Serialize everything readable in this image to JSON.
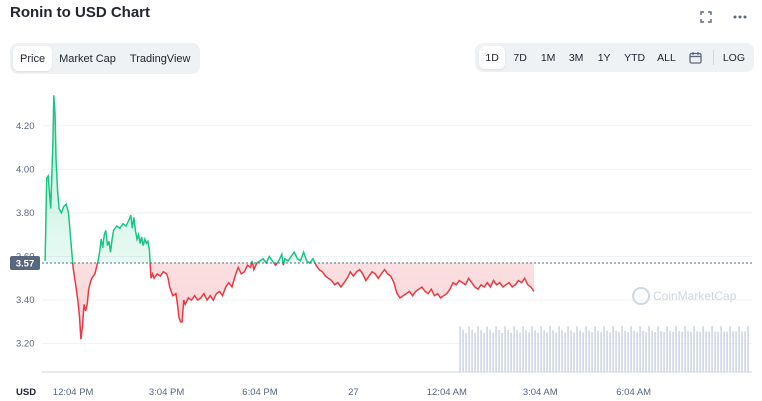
{
  "title": "Ronin to USD Chart",
  "icons": {
    "fullscreen": "expand-icon",
    "more": "more-dots-icon",
    "calendar": "calendar-icon"
  },
  "left_tabs": [
    {
      "label": "Price",
      "active": true
    },
    {
      "label": "Market Cap",
      "active": false
    },
    {
      "label": "TradingView",
      "active": false
    }
  ],
  "right_tabs": [
    {
      "label": "1D",
      "active": true
    },
    {
      "label": "7D",
      "active": false
    },
    {
      "label": "1M",
      "active": false
    },
    {
      "label": "3M",
      "active": false
    },
    {
      "label": "1Y",
      "active": false
    },
    {
      "label": "YTD",
      "active": false
    },
    {
      "label": "ALL",
      "active": false
    }
  ],
  "log_label": "LOG",
  "current_price": "3.57",
  "watermark": "CoinMarketCap",
  "colors": {
    "up": "#16c784",
    "down": "#ea3943",
    "badge": "#58667e"
  },
  "chart_data": {
    "type": "line",
    "currency_label": "USD",
    "baseline": 3.57,
    "ylim": [
      3.07,
      4.41
    ],
    "yticks": [
      "3.20",
      "3.40",
      "3.60",
      "3.80",
      "4.00",
      "4.20"
    ],
    "x_tick_labels": [
      "12:04 PM",
      "3:04 PM",
      "6:04 PM",
      "27",
      "12:04 AM",
      "3:04 AM",
      "6:04 AM"
    ],
    "x_tick_positions_hours": [
      1,
      4,
      7,
      10,
      13,
      16,
      19
    ],
    "xlim_hours": [
      0,
      22.8
    ],
    "series": [
      {
        "points": [
          [
            0.1,
            3.58
          ],
          [
            0.15,
            3.96
          ],
          [
            0.2,
            3.97
          ],
          [
            0.28,
            3.82
          ],
          [
            0.35,
            4.12
          ],
          [
            0.38,
            4.34
          ],
          [
            0.42,
            4.25
          ],
          [
            0.45,
            4.05
          ],
          [
            0.5,
            3.9
          ],
          [
            0.55,
            3.82
          ],
          [
            0.62,
            3.8
          ],
          [
            0.7,
            3.83
          ],
          [
            0.78,
            3.84
          ],
          [
            0.85,
            3.8
          ],
          [
            0.9,
            3.72
          ],
          [
            0.95,
            3.63
          ],
          [
            1.0,
            3.55
          ],
          [
            1.05,
            3.5
          ],
          [
            1.1,
            3.45
          ],
          [
            1.15,
            3.4
          ],
          [
            1.2,
            3.33
          ],
          [
            1.25,
            3.22
          ],
          [
            1.3,
            3.28
          ],
          [
            1.35,
            3.38
          ],
          [
            1.4,
            3.35
          ],
          [
            1.45,
            3.38
          ],
          [
            1.5,
            3.45
          ],
          [
            1.55,
            3.48
          ],
          [
            1.6,
            3.5
          ],
          [
            1.7,
            3.52
          ],
          [
            1.8,
            3.58
          ],
          [
            1.85,
            3.62
          ],
          [
            1.9,
            3.68
          ],
          [
            1.95,
            3.64
          ],
          [
            2.0,
            3.7
          ],
          [
            2.05,
            3.72
          ],
          [
            2.1,
            3.65
          ],
          [
            2.15,
            3.67
          ],
          [
            2.2,
            3.62
          ],
          [
            2.25,
            3.68
          ],
          [
            2.3,
            3.72
          ],
          [
            2.4,
            3.74
          ],
          [
            2.5,
            3.73
          ],
          [
            2.6,
            3.75
          ],
          [
            2.7,
            3.74
          ],
          [
            2.8,
            3.77
          ],
          [
            2.85,
            3.79
          ],
          [
            2.9,
            3.73
          ],
          [
            2.95,
            3.78
          ],
          [
            3.0,
            3.72
          ],
          [
            3.05,
            3.68
          ],
          [
            3.1,
            3.7
          ],
          [
            3.15,
            3.66
          ],
          [
            3.2,
            3.69
          ],
          [
            3.25,
            3.65
          ],
          [
            3.3,
            3.68
          ],
          [
            3.35,
            3.66
          ],
          [
            3.4,
            3.67
          ],
          [
            3.45,
            3.63
          ],
          [
            3.5,
            3.5
          ],
          [
            3.55,
            3.52
          ],
          [
            3.6,
            3.5
          ],
          [
            3.7,
            3.52
          ],
          [
            3.8,
            3.51
          ],
          [
            3.9,
            3.53
          ],
          [
            4.0,
            3.52
          ],
          [
            4.05,
            3.5
          ],
          [
            4.1,
            3.46
          ],
          [
            4.15,
            3.44
          ],
          [
            4.2,
            3.42
          ],
          [
            4.3,
            3.43
          ],
          [
            4.35,
            3.38
          ],
          [
            4.4,
            3.32
          ],
          [
            4.45,
            3.3
          ],
          [
            4.5,
            3.3
          ],
          [
            4.55,
            3.4
          ],
          [
            4.6,
            3.38
          ],
          [
            4.7,
            3.41
          ],
          [
            4.8,
            3.4
          ],
          [
            4.9,
            3.42
          ],
          [
            5.0,
            3.4
          ],
          [
            5.1,
            3.41
          ],
          [
            5.2,
            3.43
          ],
          [
            5.3,
            3.4
          ],
          [
            5.4,
            3.42
          ],
          [
            5.5,
            3.4
          ],
          [
            5.6,
            3.43
          ],
          [
            5.7,
            3.44
          ],
          [
            5.8,
            3.42
          ],
          [
            5.9,
            3.46
          ],
          [
            6.0,
            3.48
          ],
          [
            6.1,
            3.46
          ],
          [
            6.2,
            3.51
          ],
          [
            6.3,
            3.55
          ],
          [
            6.4,
            3.52
          ],
          [
            6.5,
            3.53
          ],
          [
            6.6,
            3.56
          ],
          [
            6.7,
            3.55
          ],
          [
            6.75,
            3.58
          ],
          [
            6.8,
            3.54
          ],
          [
            6.9,
            3.57
          ],
          [
            7.0,
            3.58
          ],
          [
            7.1,
            3.59
          ],
          [
            7.2,
            3.57
          ],
          [
            7.3,
            3.6
          ],
          [
            7.4,
            3.58
          ],
          [
            7.5,
            3.56
          ],
          [
            7.6,
            3.58
          ],
          [
            7.7,
            3.61
          ],
          [
            7.75,
            3.56
          ],
          [
            7.8,
            3.59
          ],
          [
            7.9,
            3.58
          ],
          [
            8.0,
            3.6
          ],
          [
            8.1,
            3.62
          ],
          [
            8.2,
            3.59
          ],
          [
            8.3,
            3.58
          ],
          [
            8.4,
            3.62
          ],
          [
            8.5,
            3.58
          ],
          [
            8.6,
            3.57
          ],
          [
            8.7,
            3.59
          ],
          [
            8.8,
            3.56
          ],
          [
            8.9,
            3.54
          ],
          [
            9.0,
            3.53
          ],
          [
            9.1,
            3.51
          ],
          [
            9.2,
            3.5
          ],
          [
            9.3,
            3.49
          ],
          [
            9.4,
            3.47
          ],
          [
            9.5,
            3.48
          ],
          [
            9.6,
            3.46
          ],
          [
            9.7,
            3.48
          ],
          [
            9.8,
            3.5
          ],
          [
            9.9,
            3.53
          ],
          [
            10.0,
            3.51
          ],
          [
            10.1,
            3.53
          ],
          [
            10.2,
            3.54
          ],
          [
            10.3,
            3.52
          ],
          [
            10.4,
            3.49
          ],
          [
            10.5,
            3.51
          ],
          [
            10.6,
            3.53
          ],
          [
            10.7,
            3.52
          ],
          [
            10.8,
            3.5
          ],
          [
            10.9,
            3.52
          ],
          [
            11.0,
            3.54
          ],
          [
            11.1,
            3.52
          ],
          [
            11.2,
            3.51
          ],
          [
            11.3,
            3.48
          ],
          [
            11.4,
            3.43
          ],
          [
            11.5,
            3.41
          ],
          [
            11.6,
            3.42
          ],
          [
            11.7,
            3.43
          ],
          [
            11.8,
            3.44
          ],
          [
            11.9,
            3.42
          ],
          [
            12.0,
            3.44
          ],
          [
            12.1,
            3.45
          ],
          [
            12.2,
            3.46
          ],
          [
            12.3,
            3.44
          ],
          [
            12.4,
            3.43
          ],
          [
            12.5,
            3.45
          ],
          [
            12.6,
            3.42
          ],
          [
            12.7,
            3.43
          ],
          [
            12.8,
            3.41
          ],
          [
            12.9,
            3.42
          ],
          [
            13.0,
            3.43
          ],
          [
            13.1,
            3.45
          ],
          [
            13.2,
            3.48
          ],
          [
            13.3,
            3.47
          ],
          [
            13.4,
            3.49
          ],
          [
            13.5,
            3.48
          ],
          [
            13.6,
            3.47
          ],
          [
            13.7,
            3.5
          ],
          [
            13.8,
            3.48
          ],
          [
            13.9,
            3.46
          ],
          [
            14.0,
            3.45
          ],
          [
            14.1,
            3.47
          ],
          [
            14.2,
            3.46
          ],
          [
            14.3,
            3.48
          ],
          [
            14.4,
            3.46
          ],
          [
            14.5,
            3.49
          ],
          [
            14.6,
            3.47
          ],
          [
            14.7,
            3.48
          ],
          [
            14.8,
            3.46
          ],
          [
            14.9,
            3.47
          ],
          [
            15.0,
            3.48
          ],
          [
            15.1,
            3.46
          ],
          [
            15.2,
            3.47
          ],
          [
            15.3,
            3.49
          ],
          [
            15.4,
            3.48
          ],
          [
            15.5,
            3.5
          ],
          [
            15.6,
            3.47
          ],
          [
            15.7,
            3.46
          ],
          [
            15.8,
            3.44
          ]
        ]
      }
    ],
    "volume_bars": {
      "start_hour": 13.4,
      "end_hour": 22.7,
      "relative_height": 0.75
    }
  }
}
